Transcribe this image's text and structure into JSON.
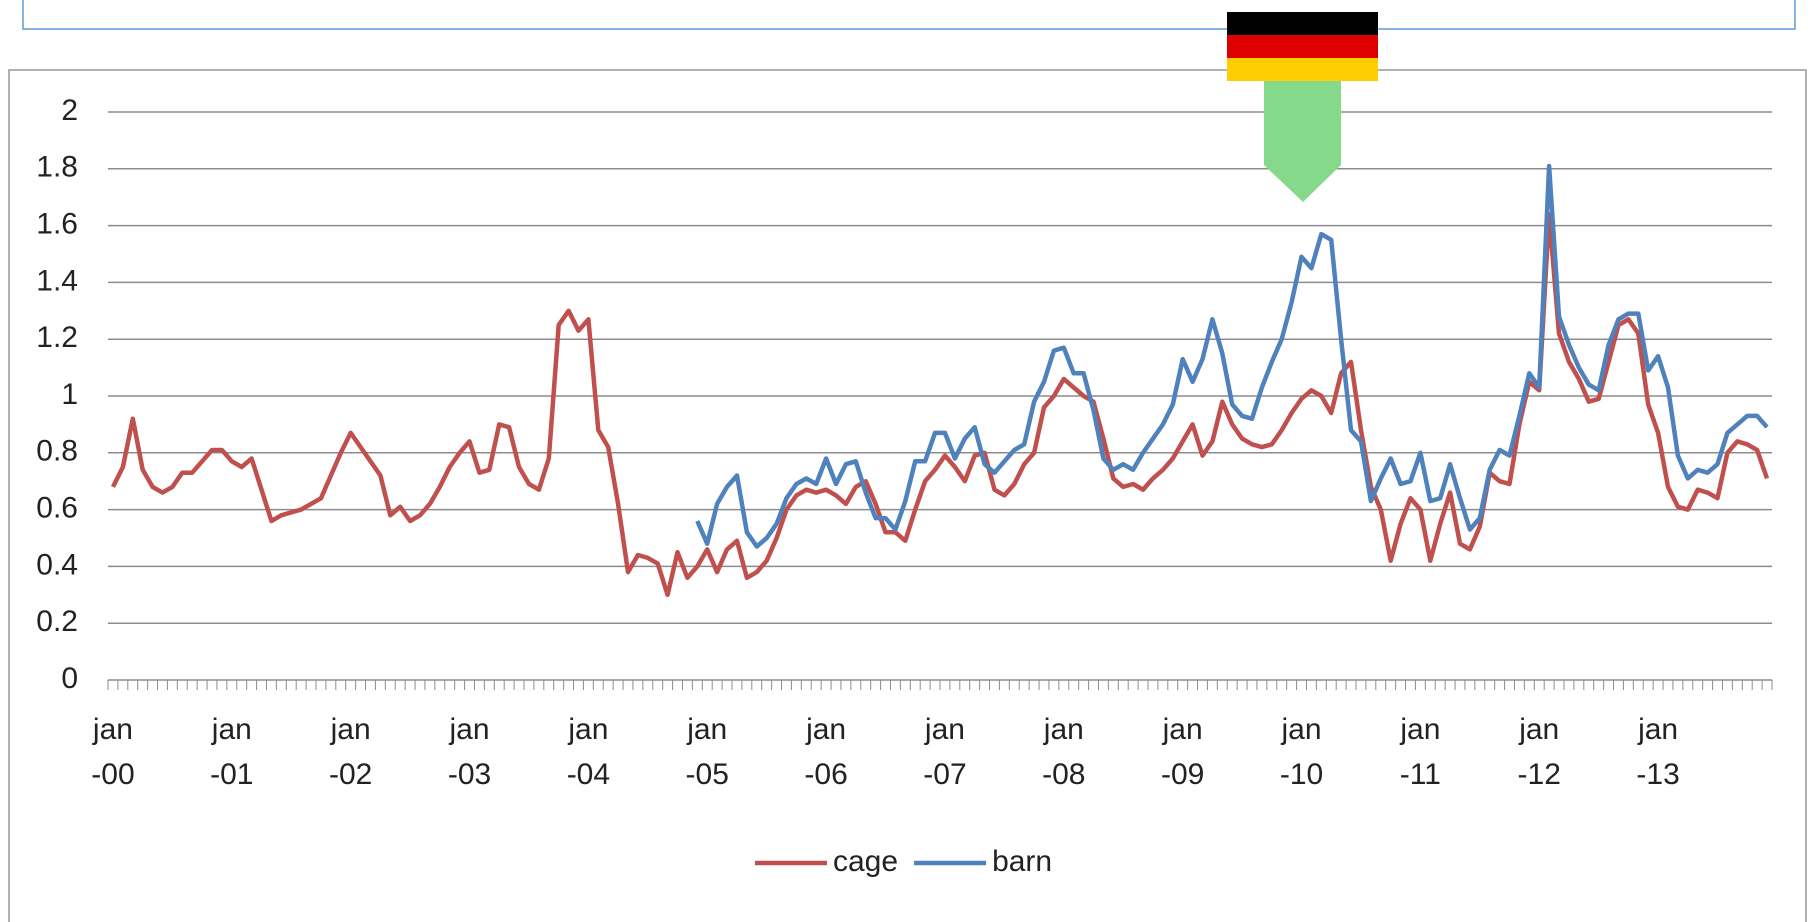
{
  "chart_data": {
    "type": "line",
    "categories": [
      "jan\n-00",
      null,
      null,
      null,
      null,
      null,
      null,
      null,
      null,
      null,
      null,
      null,
      "jan\n-01",
      null,
      null,
      null,
      null,
      null,
      null,
      null,
      null,
      null,
      null,
      null,
      "jan\n-02",
      null,
      null,
      null,
      null,
      null,
      null,
      null,
      null,
      null,
      null,
      null,
      "jan\n-03",
      null,
      null,
      null,
      null,
      null,
      null,
      null,
      null,
      null,
      null,
      null,
      "jan\n-04",
      null,
      null,
      null,
      null,
      null,
      null,
      null,
      null,
      null,
      null,
      null,
      "jan\n-05",
      null,
      null,
      null,
      null,
      null,
      null,
      null,
      null,
      null,
      null,
      null,
      "jan\n-06",
      null,
      null,
      null,
      null,
      null,
      null,
      null,
      null,
      null,
      null,
      null,
      "jan\n-07",
      null,
      null,
      null,
      null,
      null,
      null,
      null,
      null,
      null,
      null,
      null,
      "jan\n-08",
      null,
      null,
      null,
      null,
      null,
      null,
      null,
      null,
      null,
      null,
      null,
      "jan\n-09",
      null,
      null,
      null,
      null,
      null,
      null,
      null,
      null,
      null,
      null,
      null,
      "jan\n-10",
      null,
      null,
      null,
      null,
      null,
      null,
      null,
      null,
      null,
      null,
      null,
      "jan\n-11",
      null,
      null,
      null,
      null,
      null,
      null,
      null,
      null,
      null,
      null,
      null,
      "jan\n-12",
      null,
      null,
      null,
      null,
      null,
      null,
      null,
      null,
      null,
      null,
      null,
      "jan\n-13",
      null,
      null,
      null,
      null,
      null,
      null,
      null,
      null,
      null,
      null,
      null
    ],
    "series": [
      {
        "name": "cage",
        "color": "#c0504d",
        "values": [
          0.68,
          0.75,
          0.92,
          0.74,
          0.68,
          0.66,
          0.68,
          0.73,
          0.73,
          0.77,
          0.81,
          0.81,
          0.77,
          0.75,
          0.78,
          0.67,
          0.56,
          0.58,
          0.59,
          0.6,
          0.62,
          0.64,
          0.72,
          0.8,
          0.87,
          0.82,
          0.77,
          0.72,
          0.58,
          0.61,
          0.56,
          0.58,
          0.62,
          0.68,
          0.75,
          0.8,
          0.84,
          0.73,
          0.74,
          0.9,
          0.89,
          0.75,
          0.69,
          0.67,
          0.78,
          1.25,
          1.3,
          1.23,
          1.27,
          0.88,
          0.82,
          0.62,
          0.38,
          0.44,
          0.43,
          0.41,
          0.3,
          0.45,
          0.36,
          0.4,
          0.46,
          0.38,
          0.46,
          0.49,
          0.36,
          0.38,
          0.42,
          0.5,
          0.6,
          0.65,
          0.67,
          0.66,
          0.67,
          0.65,
          0.62,
          0.68,
          0.7,
          0.62,
          0.52,
          0.52,
          0.49,
          0.6,
          0.7,
          0.74,
          0.79,
          0.75,
          0.7,
          0.79,
          0.8,
          0.67,
          0.65,
          0.69,
          0.76,
          0.8,
          0.96,
          1.0,
          1.06,
          1.03,
          1.0,
          0.98,
          0.85,
          0.71,
          0.68,
          0.69,
          0.67,
          0.71,
          0.74,
          0.78,
          0.84,
          0.9,
          0.79,
          0.84,
          0.98,
          0.9,
          0.85,
          0.83,
          0.82,
          0.83,
          0.88,
          0.94,
          0.99,
          1.02,
          1.0,
          0.94,
          1.08,
          1.12,
          0.88,
          0.68,
          0.6,
          0.42,
          0.55,
          0.64,
          0.6,
          0.42,
          0.55,
          0.66,
          0.48,
          0.46,
          0.54,
          0.73,
          0.7,
          0.69,
          0.9,
          1.05,
          1.02,
          1.64,
          1.22,
          1.12,
          1.06,
          0.98,
          0.99,
          1.12,
          1.25,
          1.27,
          1.22,
          0.97,
          0.87,
          0.68,
          0.61,
          0.6,
          0.67,
          0.66,
          0.64,
          0.8,
          0.84,
          0.83,
          0.81,
          0.71
        ]
      },
      {
        "name": "barn",
        "color": "#4f81bd",
        "values": [
          null,
          null,
          null,
          null,
          null,
          null,
          null,
          null,
          null,
          null,
          null,
          null,
          null,
          null,
          null,
          null,
          null,
          null,
          null,
          null,
          null,
          null,
          null,
          null,
          null,
          null,
          null,
          null,
          null,
          null,
          null,
          null,
          null,
          null,
          null,
          null,
          null,
          null,
          null,
          null,
          null,
          null,
          null,
          null,
          null,
          null,
          null,
          null,
          null,
          null,
          null,
          null,
          null,
          null,
          null,
          null,
          null,
          null,
          null,
          0.56,
          0.48,
          0.62,
          0.68,
          0.72,
          0.52,
          0.47,
          0.5,
          0.55,
          0.64,
          0.69,
          0.71,
          0.69,
          0.78,
          0.69,
          0.76,
          0.77,
          0.66,
          0.57,
          0.57,
          0.53,
          0.63,
          0.77,
          0.77,
          0.87,
          0.87,
          0.78,
          0.85,
          0.89,
          0.76,
          0.73,
          0.77,
          0.81,
          0.83,
          0.98,
          1.05,
          1.16,
          1.17,
          1.08,
          1.08,
          0.95,
          0.78,
          0.74,
          0.76,
          0.74,
          0.8,
          0.85,
          0.9,
          0.97,
          1.13,
          1.05,
          1.13,
          1.27,
          1.15,
          0.97,
          0.93,
          0.92,
          1.03,
          1.12,
          1.2,
          1.33,
          1.49,
          1.45,
          1.57,
          1.55,
          1.2,
          0.88,
          0.84,
          0.63,
          0.71,
          0.78,
          0.69,
          0.7,
          0.8,
          0.63,
          0.64,
          0.76,
          0.64,
          0.53,
          0.57,
          0.74,
          0.81,
          0.79,
          0.93,
          1.08,
          1.03,
          1.81,
          1.28,
          1.18,
          1.1,
          1.04,
          1.02,
          1.18,
          1.27,
          1.29,
          1.29,
          1.09,
          1.14,
          1.03,
          0.79,
          0.71,
          0.74,
          0.73,
          0.76,
          0.87,
          0.9,
          0.93,
          0.93,
          0.89
        ]
      }
    ],
    "ylim": [
      0,
      2
    ],
    "yticks": [
      0,
      0.2,
      0.4,
      0.6,
      0.8,
      1,
      1.2,
      1.4,
      1.6,
      1.8,
      2
    ],
    "grid": true,
    "legend": "bottom"
  }
}
